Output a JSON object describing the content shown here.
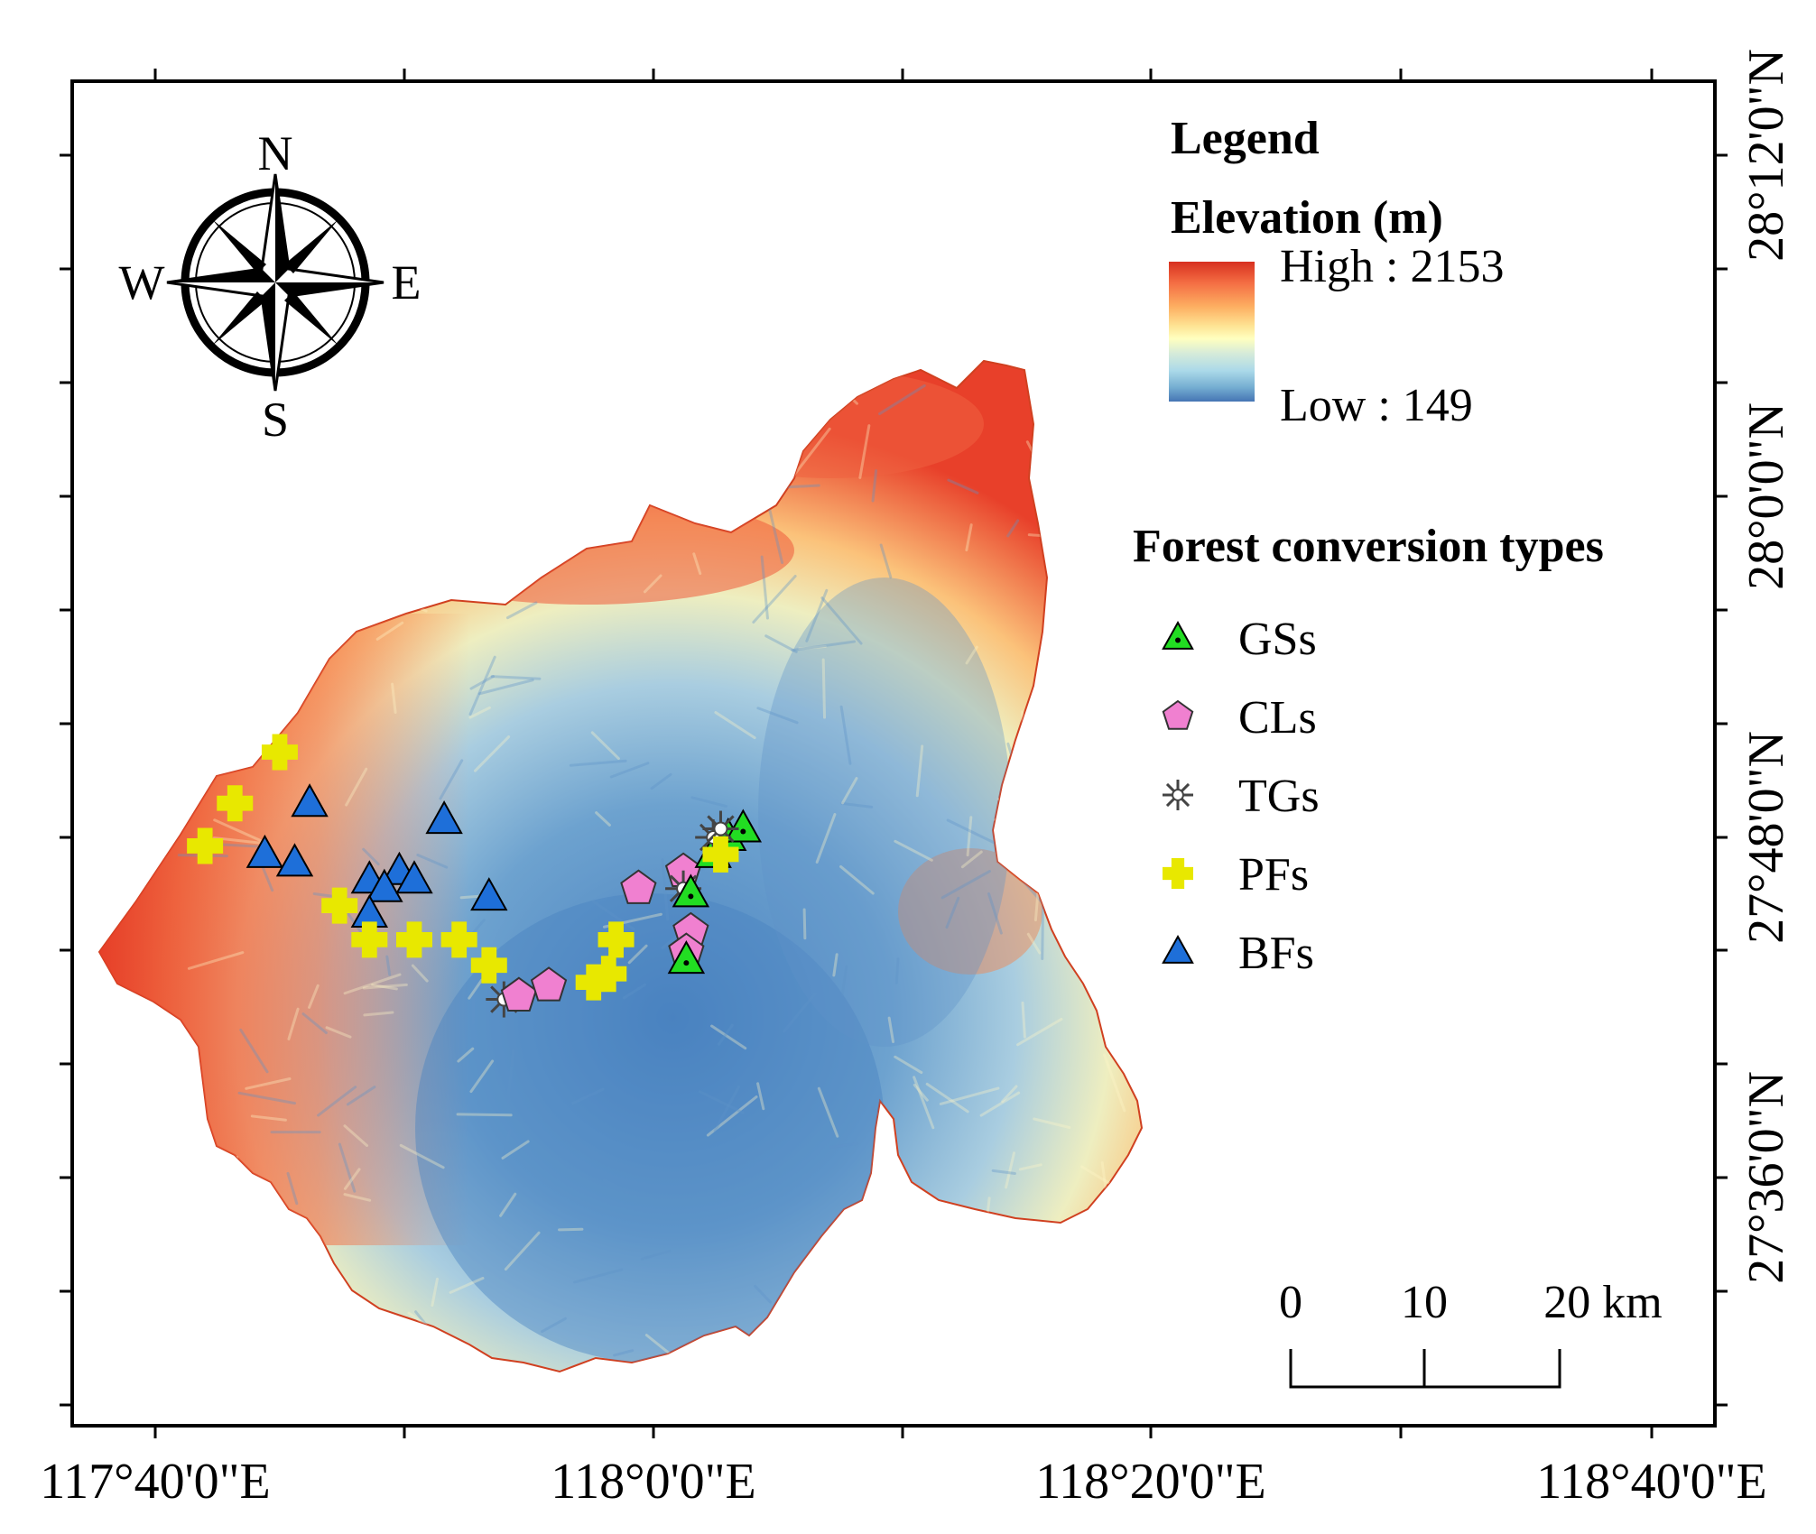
{
  "axes": {
    "x_ticks": [
      "117°40'0\"E",
      "118°0'0\"E",
      "118°20'0\"E",
      "118°40'0\"E"
    ],
    "y_ticks": [
      "28°12'0\"N",
      "28°0'0\"N",
      "27°48'0\"N",
      "27°36'0\"N"
    ]
  },
  "compass": {
    "n": "N",
    "s": "S",
    "e": "E",
    "w": "W"
  },
  "legend": {
    "title": "Legend",
    "elevation_title": "Elevation (m)",
    "high_label": "High : 2153",
    "low_label": "Low : 149",
    "ramp_colors": [
      "#d7301f",
      "#f46d43",
      "#fdae61",
      "#fee090",
      "#ffffbf",
      "#e0f0d0",
      "#abd9e9",
      "#74add1",
      "#4575b4"
    ],
    "types_title": "Forest conversion types",
    "types": [
      {
        "label": "GSs",
        "symbol": "triangle-dot",
        "color": "#22dd22"
      },
      {
        "label": "CLs",
        "symbol": "pentagon",
        "color": "#f080d0"
      },
      {
        "label": "TGs",
        "symbol": "asterisk",
        "color": "#888888"
      },
      {
        "label": "PFs",
        "symbol": "plus",
        "color": "#e8e800"
      },
      {
        "label": "BFs",
        "symbol": "triangle",
        "color": "#1e6fd9"
      }
    ]
  },
  "scale_bar": {
    "labels": [
      "0",
      "10",
      "20 km"
    ]
  },
  "map_data": {
    "region": "elevation raster",
    "elevation_range_m": [
      149,
      2153
    ],
    "points": [
      {
        "type": "PFs",
        "lon": 117.75,
        "lat": 27.85
      },
      {
        "type": "PFs",
        "lon": 117.72,
        "lat": 27.82
      },
      {
        "type": "PFs",
        "lon": 117.7,
        "lat": 27.795
      },
      {
        "type": "BFs",
        "lon": 117.77,
        "lat": 27.82
      },
      {
        "type": "BFs",
        "lon": 117.74,
        "lat": 27.79
      },
      {
        "type": "BFs",
        "lon": 117.76,
        "lat": 27.785
      },
      {
        "type": "BFs",
        "lon": 117.86,
        "lat": 27.81
      },
      {
        "type": "BFs",
        "lon": 117.89,
        "lat": 27.765
      },
      {
        "type": "BFs",
        "lon": 117.81,
        "lat": 27.775
      },
      {
        "type": "BFs",
        "lon": 117.83,
        "lat": 27.78
      },
      {
        "type": "BFs",
        "lon": 117.82,
        "lat": 27.77
      },
      {
        "type": "BFs",
        "lon": 117.84,
        "lat": 27.775
      },
      {
        "type": "BFs",
        "lon": 117.81,
        "lat": 27.755
      },
      {
        "type": "PFs",
        "lon": 117.79,
        "lat": 27.76
      },
      {
        "type": "PFs",
        "lon": 117.81,
        "lat": 27.74
      },
      {
        "type": "PFs",
        "lon": 117.84,
        "lat": 27.74
      },
      {
        "type": "PFs",
        "lon": 117.87,
        "lat": 27.74
      },
      {
        "type": "PFs",
        "lon": 117.89,
        "lat": 27.725
      },
      {
        "type": "TGs",
        "lon": 117.9,
        "lat": 27.705
      },
      {
        "type": "CLs",
        "lon": 117.91,
        "lat": 27.707
      },
      {
        "type": "CLs",
        "lon": 117.93,
        "lat": 27.713
      },
      {
        "type": "PFs",
        "lon": 117.96,
        "lat": 27.715
      },
      {
        "type": "PFs",
        "lon": 117.97,
        "lat": 27.72
      },
      {
        "type": "PFs",
        "lon": 117.975,
        "lat": 27.74
      },
      {
        "type": "CLs",
        "lon": 117.99,
        "lat": 27.77
      },
      {
        "type": "CLs",
        "lon": 118.02,
        "lat": 27.78
      },
      {
        "type": "TGs",
        "lon": 118.02,
        "lat": 27.77
      },
      {
        "type": "GSs",
        "lon": 118.025,
        "lat": 27.767
      },
      {
        "type": "CLs",
        "lon": 118.025,
        "lat": 27.745
      },
      {
        "type": "CLs",
        "lon": 118.022,
        "lat": 27.733
      },
      {
        "type": "GSs",
        "lon": 118.022,
        "lat": 27.728
      },
      {
        "type": "GSs",
        "lon": 118.04,
        "lat": 27.79
      },
      {
        "type": "GSs",
        "lon": 118.05,
        "lat": 27.8
      },
      {
        "type": "GSs",
        "lon": 118.06,
        "lat": 27.805
      },
      {
        "type": "TGs",
        "lon": 118.04,
        "lat": 27.8
      },
      {
        "type": "TGs",
        "lon": 118.045,
        "lat": 27.805
      },
      {
        "type": "PFs",
        "lon": 118.045,
        "lat": 27.79
      }
    ]
  }
}
